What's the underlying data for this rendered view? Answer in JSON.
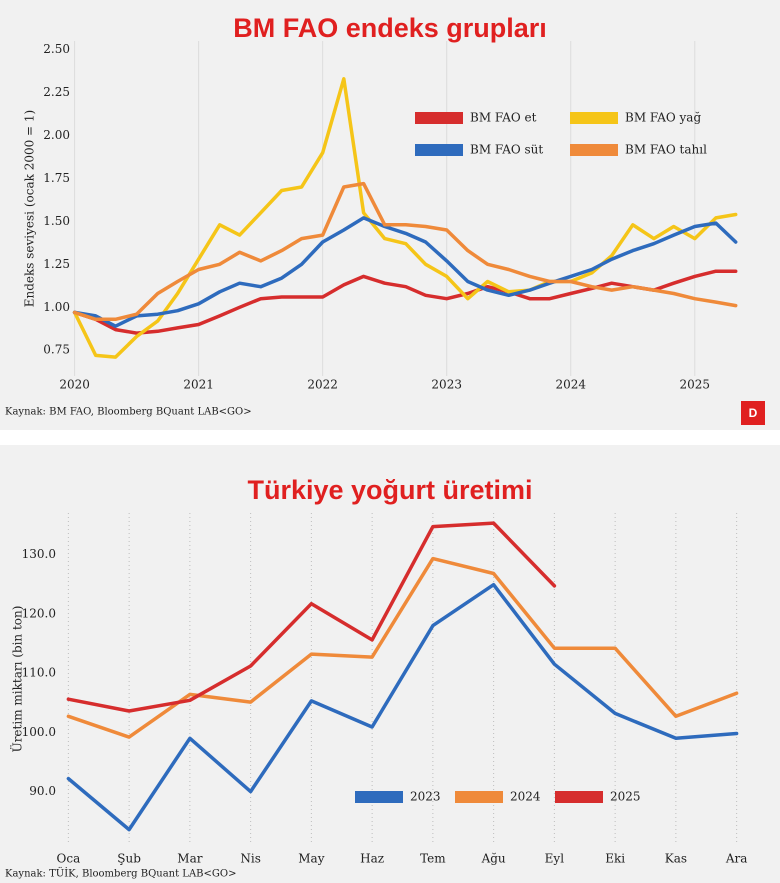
{
  "chart_data": [
    {
      "type": "line",
      "title": "BM FAO endeks grupları",
      "y_label": "Endeks seviyesi (ocak 2000 = 1)",
      "source": "Kaynak: BM FAO, Bloomberg BQuant LAB<GO>",
      "logo": "D",
      "x": [
        2020,
        2020.17,
        2020.33,
        2020.5,
        2020.67,
        2020.83,
        2021,
        2021.17,
        2021.33,
        2021.5,
        2021.67,
        2021.83,
        2022,
        2022.17,
        2022.33,
        2022.5,
        2022.67,
        2022.83,
        2023,
        2023.17,
        2023.33,
        2023.5,
        2023.67,
        2023.83,
        2024,
        2024.17,
        2024.33,
        2024.5,
        2024.67,
        2024.83,
        2025,
        2025.17,
        2025.33
      ],
      "series": [
        {
          "name": "BM FAO et",
          "color": "#d62d2d",
          "values": [
            0.97,
            0.93,
            0.87,
            0.85,
            0.86,
            0.88,
            0.9,
            0.95,
            1.0,
            1.05,
            1.06,
            1.06,
            1.06,
            1.13,
            1.18,
            1.14,
            1.12,
            1.07,
            1.05,
            1.08,
            1.12,
            1.09,
            1.05,
            1.05,
            1.08,
            1.11,
            1.14,
            1.12,
            1.1,
            1.14,
            1.18,
            1.21,
            1.21
          ]
        },
        {
          "name": "BM FAO yağ",
          "color": "#f5c518",
          "values": [
            0.97,
            0.72,
            0.71,
            0.83,
            0.92,
            1.08,
            1.28,
            1.48,
            1.42,
            1.55,
            1.68,
            1.7,
            1.9,
            2.33,
            1.55,
            1.4,
            1.37,
            1.25,
            1.18,
            1.05,
            1.15,
            1.09,
            1.1,
            1.15,
            1.15,
            1.2,
            1.3,
            1.48,
            1.4,
            1.47,
            1.4,
            1.52,
            1.54
          ]
        },
        {
          "name": "BM FAO süt",
          "color": "#2e6bbd",
          "values": [
            0.97,
            0.95,
            0.89,
            0.95,
            0.96,
            0.98,
            1.02,
            1.09,
            1.14,
            1.12,
            1.17,
            1.25,
            1.38,
            1.45,
            1.52,
            1.47,
            1.43,
            1.38,
            1.27,
            1.15,
            1.1,
            1.07,
            1.1,
            1.14,
            1.18,
            1.22,
            1.28,
            1.33,
            1.37,
            1.42,
            1.47,
            1.49,
            1.38
          ]
        },
        {
          "name": "BM FAO tahıl",
          "color": "#ef8a3a",
          "values": [
            0.97,
            0.93,
            0.93,
            0.96,
            1.08,
            1.15,
            1.22,
            1.25,
            1.32,
            1.27,
            1.33,
            1.4,
            1.42,
            1.7,
            1.72,
            1.48,
            1.48,
            1.47,
            1.45,
            1.33,
            1.25,
            1.22,
            1.18,
            1.15,
            1.15,
            1.12,
            1.1,
            1.12,
            1.1,
            1.08,
            1.05,
            1.03,
            1.01
          ]
        }
      ],
      "xlim": [
        2019.85,
        2025.55
      ],
      "xticks": [
        2020,
        2021,
        2022,
        2023,
        2024,
        2025
      ],
      "ylim": [
        0.6,
        2.55
      ],
      "yticks": [
        0.75,
        {
          "value": 1,
          "label": "1.00"
        },
        1.25,
        {
          "value": 1.5,
          "label": "1.50"
        },
        1.75,
        {
          "value": 2,
          "label": "2.00"
        },
        2.25,
        {
          "value": 2.5,
          "label": "2.50"
        }
      ],
      "grid": true,
      "legend": "upper right"
    },
    {
      "type": "line",
      "title": "Türkiye yoğurt üretimi",
      "y_label": "Üretim miktarı (bin ton)",
      "source": "Kaynak: TÜİK, Bloomberg BQuant LAB<GO>",
      "categories": [
        "Oca",
        "Şub",
        "Mar",
        "Nis",
        "May",
        "Haz",
        "Tem",
        "Ağu",
        "Eyl",
        "Eki",
        "Kas",
        "Ara"
      ],
      "series": [
        {
          "name": "2023",
          "color": "#2e6bbd",
          "values": [
            92.2,
            83.6,
            99,
            90,
            105.3,
            100.9,
            118,
            124.9,
            111.5,
            103.2,
            99,
            99.8
          ]
        },
        {
          "name": "2024",
          "color": "#ef8a3a",
          "values": [
            102.7,
            99.2,
            106.4,
            105.1,
            113.2,
            112.7,
            129.3,
            126.8,
            114.2,
            114.2,
            102.7,
            106.6
          ]
        },
        {
          "name": "2025",
          "color": "#d62d2d",
          "values": [
            105.6,
            103.6,
            105.4,
            111.2,
            121.7,
            115.6,
            134.7,
            135.3,
            124.7,
            null,
            null,
            null
          ]
        }
      ],
      "ylim": [
        81,
        137
      ],
      "yticks": [
        {
          "value": 90,
          "label": "90.0"
        },
        {
          "value": 100,
          "label": "100.0"
        },
        {
          "value": 110,
          "label": "110.0"
        },
        {
          "value": 120,
          "label": "120.0"
        },
        {
          "value": 130,
          "label": "130.0"
        }
      ],
      "grid": true,
      "legend": "lower right"
    }
  ]
}
